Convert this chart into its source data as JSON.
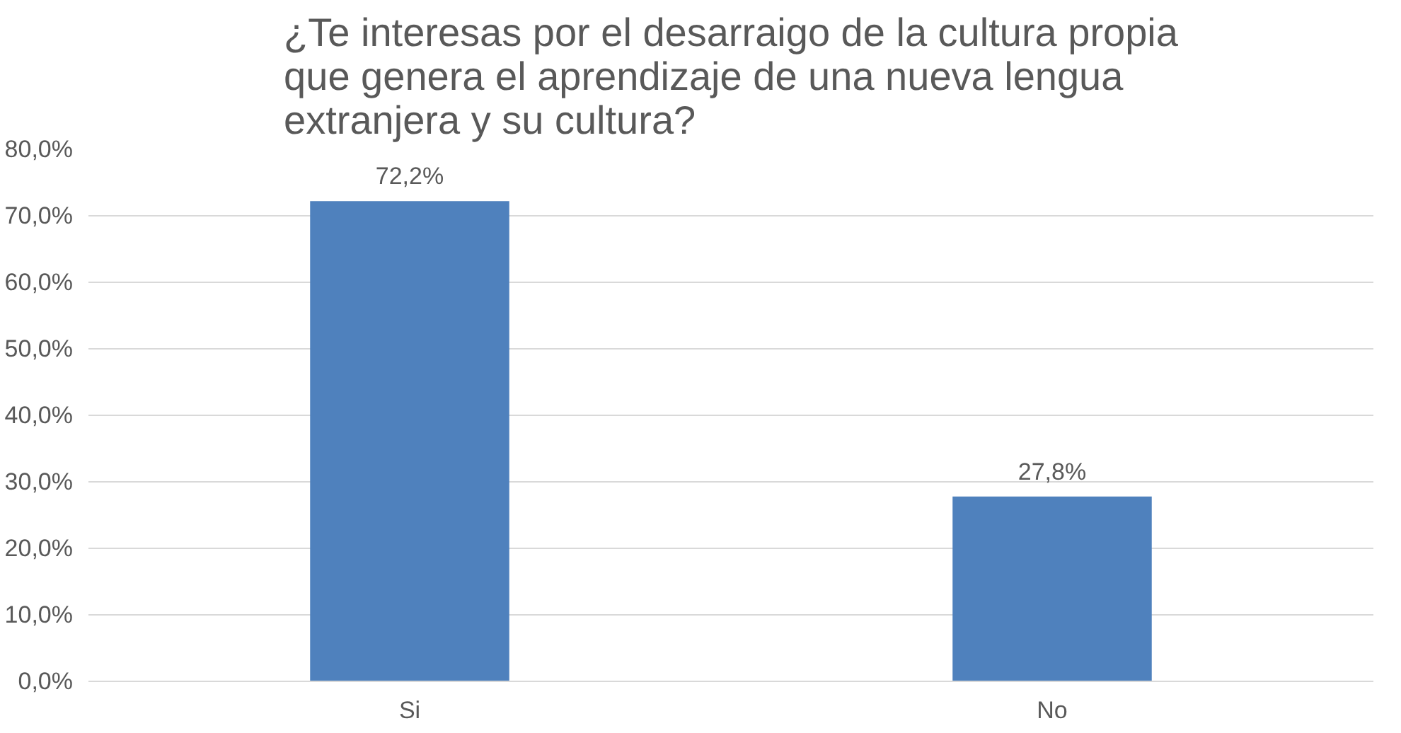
{
  "chart_data": {
    "type": "bar",
    "title": "¿Te interesas por el desarraigo de la cultura propia que genera el aprendizaje de una nueva lengua extranjera y su cultura?",
    "categories": [
      "Si",
      "No"
    ],
    "values": [
      72.2,
      27.8
    ],
    "color": "#4f81bd",
    "value_labels": [
      "72,2%",
      "27,8%"
    ],
    "ylim": [
      0,
      80
    ],
    "yticks": [
      {
        "value": 0,
        "label": "0,0%"
      },
      {
        "value": 10,
        "label": "10,0%"
      },
      {
        "value": 20,
        "label": "20,0%"
      },
      {
        "value": 30,
        "label": "30,0%"
      },
      {
        "value": 40,
        "label": "40,0%"
      },
      {
        "value": 50,
        "label": "50,0%"
      },
      {
        "value": 60,
        "label": "60,0%"
      },
      {
        "value": 70,
        "label": "70,0%"
      },
      {
        "value": 80,
        "label": "80,0%"
      }
    ],
    "grid": "y"
  }
}
